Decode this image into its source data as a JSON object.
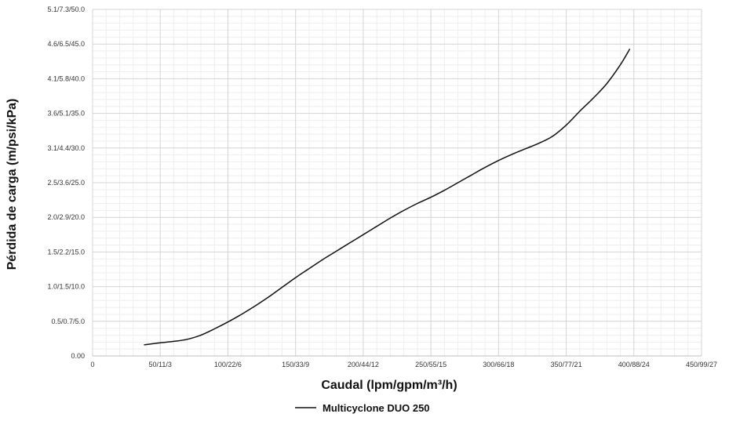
{
  "chart_data": {
    "type": "line",
    "xlabel": "Caudal (lpm/gpm/m³/h)",
    "ylabel": "Pérdida de carga (m/psi/kPa)",
    "x_ticks": [
      "0",
      "50/11/3",
      "100/22/6",
      "150/33/9",
      "200/44/12",
      "250/55/15",
      "300/66/18",
      "350/77/21",
      "400/88/24",
      "450/99/27"
    ],
    "y_ticks": [
      "0.00",
      "0.5/0.7/5.0",
      "1.0/1.5/10.0",
      "1.5/2.2/15.0",
      "2.0/2.9/20.0",
      "2.5/3.6/25.0",
      "3.1/4.4/30.0",
      "3.6/5.1/35.0",
      "4.1/5.8/40.0",
      "4.6/6.5/45.0",
      "5.1/7.3/50.0"
    ],
    "xlim": [
      0,
      450
    ],
    "ylim": [
      0,
      50
    ],
    "grid": true,
    "legend_position": "bottom-center",
    "series": [
      {
        "name": "Multicyclone DUO 250",
        "color": "#111111",
        "points": [
          [
            38,
            1.6
          ],
          [
            50,
            1.9
          ],
          [
            60,
            2.1
          ],
          [
            70,
            2.4
          ],
          [
            80,
            3.0
          ],
          [
            90,
            3.9
          ],
          [
            100,
            4.9
          ],
          [
            110,
            6.0
          ],
          [
            120,
            7.2
          ],
          [
            130,
            8.5
          ],
          [
            140,
            9.9
          ],
          [
            150,
            11.3
          ],
          [
            160,
            12.6
          ],
          [
            170,
            13.9
          ],
          [
            180,
            15.1
          ],
          [
            190,
            16.3
          ],
          [
            200,
            17.5
          ],
          [
            210,
            18.7
          ],
          [
            220,
            19.9
          ],
          [
            230,
            21.0
          ],
          [
            240,
            22.0
          ],
          [
            250,
            22.9
          ],
          [
            260,
            23.9
          ],
          [
            270,
            25.0
          ],
          [
            280,
            26.1
          ],
          [
            290,
            27.2
          ],
          [
            300,
            28.2
          ],
          [
            310,
            29.1
          ],
          [
            320,
            29.9
          ],
          [
            330,
            30.7
          ],
          [
            340,
            31.7
          ],
          [
            350,
            33.3
          ],
          [
            360,
            35.3
          ],
          [
            370,
            37.2
          ],
          [
            380,
            39.3
          ],
          [
            390,
            42.0
          ],
          [
            397,
            44.3
          ]
        ]
      }
    ]
  }
}
